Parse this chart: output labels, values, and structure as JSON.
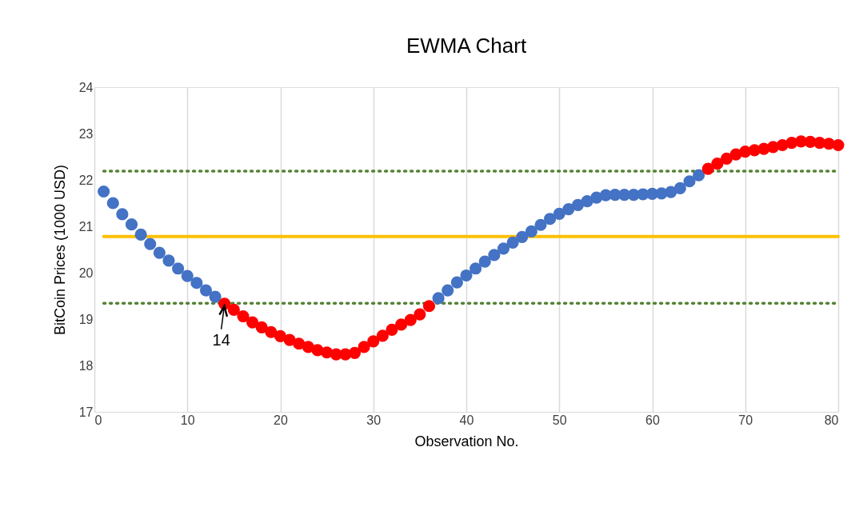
{
  "chart_data": {
    "type": "scatter",
    "title": "EWMA Chart",
    "xlabel": "Observation No.",
    "ylabel": "BitCoin Prices (1000 USD)",
    "xlim": [
      0,
      80
    ],
    "xticks": [
      0,
      10,
      20,
      30,
      40,
      50,
      60,
      70,
      80
    ],
    "ylim": [
      17,
      24
    ],
    "yticks": [
      17,
      18,
      19,
      20,
      21,
      22,
      23,
      24
    ],
    "grid": "x",
    "series": [
      {
        "type": "line",
        "color": "#ffc000",
        "line_style": "solid",
        "x": [
          1,
          80
        ],
        "values": [
          20.78,
          20.78
        ]
      },
      {
        "type": "line",
        "color": "#548235",
        "line_style": "dotted",
        "x": [
          1,
          80
        ],
        "values": [
          22.19,
          22.19
        ]
      },
      {
        "type": "line",
        "color": "#548235",
        "line_style": "dotted",
        "x": [
          1,
          80
        ],
        "values": [
          19.34,
          19.34
        ]
      },
      {
        "marker": "circle",
        "color": "#4472c4",
        "x": [
          1,
          2,
          3,
          4,
          5,
          6,
          7,
          8,
          9,
          10,
          11,
          12,
          13,
          37,
          38,
          39,
          40,
          41,
          42,
          43,
          44,
          45,
          46,
          47,
          48,
          49,
          50,
          51,
          52,
          53,
          54,
          55,
          56,
          57,
          58,
          59,
          60,
          61,
          62,
          63,
          64,
          65
        ],
        "values": [
          21.75,
          21.5,
          21.26,
          21.04,
          20.82,
          20.62,
          20.43,
          20.26,
          20.09,
          19.93,
          19.78,
          19.62,
          19.48,
          19.45,
          19.62,
          19.79,
          19.94,
          20.09,
          20.24,
          20.38,
          20.52,
          20.65,
          20.77,
          20.89,
          21.03,
          21.16,
          21.27,
          21.37,
          21.46,
          21.54,
          21.62,
          21.67,
          21.68,
          21.68,
          21.68,
          21.69,
          21.7,
          21.71,
          21.74,
          21.82,
          21.97,
          22.1
        ]
      },
      {
        "marker": "circle",
        "color": "#ff0000",
        "x": [
          14,
          15,
          16,
          17,
          18,
          19,
          20,
          21,
          22,
          23,
          24,
          25,
          26,
          27,
          28,
          29,
          30,
          31,
          32,
          33,
          34,
          35,
          36,
          66,
          67,
          68,
          69,
          70,
          71,
          72,
          73,
          74,
          75,
          76,
          77,
          78,
          79,
          80
        ],
        "values": [
          19.33,
          19.2,
          19.06,
          18.93,
          18.82,
          18.72,
          18.63,
          18.55,
          18.47,
          18.4,
          18.33,
          18.28,
          18.24,
          18.24,
          18.27,
          18.4,
          18.52,
          18.64,
          18.77,
          18.88,
          18.98,
          19.1,
          19.28,
          22.24,
          22.35,
          22.46,
          22.55,
          22.61,
          22.64,
          22.67,
          22.71,
          22.75,
          22.8,
          22.83,
          22.82,
          22.8,
          22.78,
          22.75
        ]
      }
    ],
    "annotations": [
      {
        "text": "14",
        "x": 14,
        "y": 19.33
      }
    ]
  }
}
